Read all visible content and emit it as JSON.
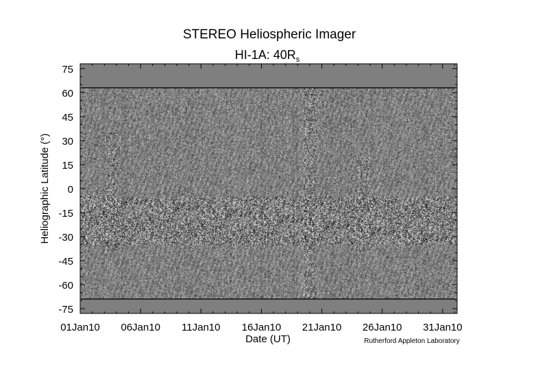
{
  "chart_data": {
    "type": "heatmap",
    "title": "STEREO Heliospheric Imager",
    "subtitle_main": "HI-1A: 40R",
    "subtitle_sub": "s",
    "xlabel": "Date (UT)",
    "ylabel": "Heliographic Latitude (°)",
    "credit": "Rutherford Appleton Laboratory",
    "x_ticks": [
      "01Jan10",
      "06Jan10",
      "11Jan10",
      "16Jan10",
      "21Jan10",
      "26Jan10",
      "31Jan10"
    ],
    "x_tick_days": [
      1,
      6,
      11,
      16,
      21,
      26,
      31
    ],
    "xlim_days": [
      1,
      32.2
    ],
    "y_ticks": [
      "75",
      "60",
      "45",
      "30",
      "15",
      "0",
      "-15",
      "-30",
      "-45",
      "-60",
      "-75"
    ],
    "y_tick_values": [
      75,
      60,
      45,
      30,
      15,
      0,
      -15,
      -30,
      -45,
      -60,
      -75
    ],
    "ylim": [
      -78,
      78
    ],
    "data_latitude_range": [
      -69,
      63
    ],
    "no_data_color": "#7f7f7f",
    "colormap": "grayscale difference (black to white)",
    "features": [
      {
        "description": "bright streak",
        "x_days": [
          3,
          4
        ],
        "lat": [
          -40,
          35
        ]
      },
      {
        "description": "band of enhanced structure",
        "x_days": [
          1,
          32
        ],
        "lat": [
          -35,
          -5
        ]
      },
      {
        "description": "bright streak",
        "x_days": [
          24,
          25
        ],
        "lat": [
          -40,
          20
        ]
      },
      {
        "description": "data gap lines",
        "x_days": [
          19.5,
          20.5
        ],
        "lat": [
          -69,
          63
        ]
      }
    ]
  }
}
